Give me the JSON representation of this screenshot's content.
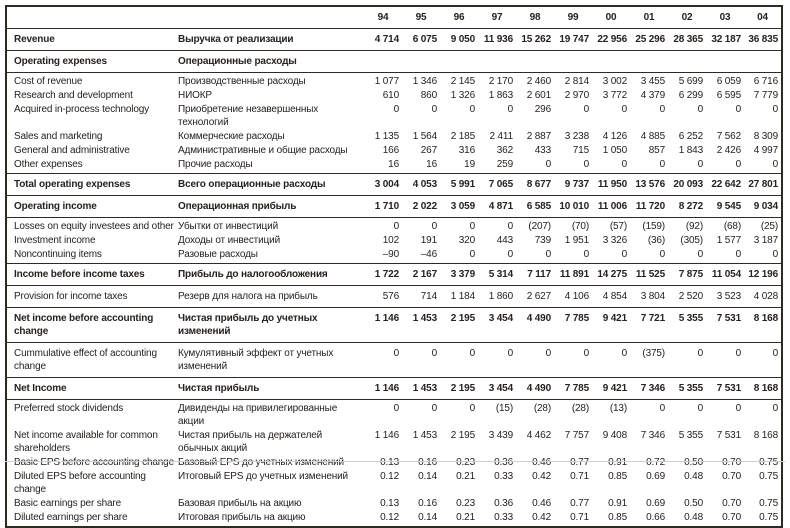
{
  "colors": {
    "text": "#26221e",
    "border": "#2e2a26",
    "bg": "#ffffff"
  },
  "table": {
    "years": [
      "94",
      "95",
      "96",
      "97",
      "98",
      "99",
      "00",
      "01",
      "02",
      "03",
      "04"
    ],
    "groups": [
      {
        "kind": "single",
        "rows": [
          {
            "style": "bold",
            "en": "Revenue",
            "ru": "Выручка от реализации",
            "values": [
              "4 714",
              "6 075",
              "9 050",
              "11 936",
              "15 262",
              "19 747",
              "22 956",
              "25 296",
              "28 365",
              "32 187",
              "36 835"
            ]
          }
        ]
      },
      {
        "kind": "single",
        "rows": [
          {
            "style": "bold",
            "en": "Operating expenses",
            "ru": "Операционные расходы",
            "values": null
          }
        ]
      },
      {
        "kind": "grp",
        "rows": [
          {
            "style": "item",
            "en": "Cost of revenue",
            "ru": "Производственные расходы",
            "values": [
              "1 077",
              "1 346",
              "2 145",
              "2 170",
              "2 460",
              "2 814",
              "3 002",
              "3 455",
              "5 699",
              "6 059",
              "6 716"
            ]
          },
          {
            "style": "item",
            "en": "Research and development",
            "ru": "НИОКР",
            "values": [
              "610",
              "860",
              "1 326",
              "1 863",
              "2 601",
              "2 970",
              "3 772",
              "4 379",
              "6 299",
              "6 595",
              "7 779"
            ]
          },
          {
            "style": "item",
            "en": "Acquired in-process technology",
            "ru": "Приобретение незавершенных технологий",
            "values": [
              "0",
              "0",
              "0",
              "0",
              "296",
              "0",
              "0",
              "0",
              "0",
              "0",
              "0"
            ]
          },
          {
            "style": "item",
            "en": "Sales and marketing",
            "ru": "Коммерческие расходы",
            "values": [
              "1 135",
              "1 564",
              "2 185",
              "2 411",
              "2 887",
              "3 238",
              "4 126",
              "4 885",
              "6 252",
              "7 562",
              "8 309"
            ]
          },
          {
            "style": "item",
            "en": "General and administrative",
            "ru": "Административные и общие расходы",
            "values": [
              "166",
              "267",
              "316",
              "362",
              "433",
              "715",
              "1 050",
              "857",
              "1 843",
              "2 426",
              "4 997"
            ]
          },
          {
            "style": "item",
            "en": "Other expenses",
            "ru": "Прочие расходы",
            "values": [
              "16",
              "16",
              "19",
              "259",
              "0",
              "0",
              "0",
              "0",
              "0",
              "0",
              "0"
            ]
          }
        ]
      },
      {
        "kind": "single",
        "rows": [
          {
            "style": "bold",
            "en": "Total operating expenses",
            "ru": "Всего операционные расходы",
            "values": [
              "3 004",
              "4 053",
              "5 991",
              "7 065",
              "8 677",
              "9 737",
              "11 950",
              "13 576",
              "20 093",
              "22 642",
              "27 801"
            ]
          }
        ]
      },
      {
        "kind": "single",
        "rows": [
          {
            "style": "bold",
            "en": "Operating income",
            "ru": "Операционная прибыль",
            "values": [
              "1 710",
              "2 022",
              "3 059",
              "4 871",
              "6 585",
              "10 010",
              "11 006",
              "11 720",
              "8 272",
              "9 545",
              "9 034"
            ]
          }
        ]
      },
      {
        "kind": "grp",
        "rows": [
          {
            "style": "item",
            "en": "Losses on equity investees and other",
            "ru": "Убытки от инвестиций",
            "values": [
              "0",
              "0",
              "0",
              "0",
              "(207)",
              "(70)",
              "(57)",
              "(159)",
              "(92)",
              "(68)",
              "(25)"
            ]
          },
          {
            "style": "item",
            "en": "Investment income",
            "ru": "Доходы от инвестиций",
            "values": [
              "102",
              "191",
              "320",
              "443",
              "739",
              "1 951",
              "3 326",
              "(36)",
              "(305)",
              "1 577",
              "3 187"
            ]
          },
          {
            "style": "item",
            "en": "Noncontinuing items",
            "ru": "Разовые расходы",
            "values": [
              "–90",
              "–46",
              "0",
              "0",
              "0",
              "0",
              "0",
              "0",
              "0",
              "0",
              "0"
            ]
          }
        ]
      },
      {
        "kind": "single",
        "rows": [
          {
            "style": "bold",
            "en": "Income before income taxes",
            "ru": "Прибыль до налогообложения",
            "values": [
              "1 722",
              "2 167",
              "3 379",
              "5 314",
              "7 117",
              "11 891",
              "14 275",
              "11 525",
              "7 875",
              "11 054",
              "12 196"
            ]
          }
        ]
      },
      {
        "kind": "single-item",
        "rows": [
          {
            "style": "item",
            "en": "Provision for income taxes",
            "ru": "Резерв для налога на прибыль",
            "values": [
              "576",
              "714",
              "1 184",
              "1 860",
              "2 627",
              "4 106",
              "4 854",
              "3 804",
              "2 520",
              "3 523",
              "4 028"
            ]
          }
        ]
      },
      {
        "kind": "single",
        "rows": [
          {
            "style": "bold",
            "en": "Net income before accounting change",
            "ru": "Чистая прибыль до учетных изменений",
            "values": [
              "1 146",
              "1 453",
              "2 195",
              "3 454",
              "4 490",
              "7 785",
              "9 421",
              "7 721",
              "5 355",
              "7 531",
              "8 168"
            ]
          }
        ]
      },
      {
        "kind": "single-item",
        "rows": [
          {
            "style": "item",
            "en": "Cummulative effect of accounting change",
            "ru": "Кумулятивный эффект от учетных изменений",
            "values": [
              "0",
              "0",
              "0",
              "0",
              "0",
              "0",
              "0",
              "(375)",
              "0",
              "0",
              "0"
            ]
          }
        ]
      },
      {
        "kind": "single",
        "rows": [
          {
            "style": "bold",
            "en": "Net Income",
            "ru": "Чистая прибыль",
            "values": [
              "1 146",
              "1 453",
              "2 195",
              "3 454",
              "4 490",
              "7 785",
              "9 421",
              "7 346",
              "5 355",
              "7 531",
              "8 168"
            ]
          }
        ]
      },
      {
        "kind": "grp",
        "rows": [
          {
            "style": "item",
            "en": "Preferred stock dividends",
            "ru": "Дивиденды на привилегированные акции",
            "values": [
              "0",
              "0",
              "0",
              "(15)",
              "(28)",
              "(28)",
              "(13)",
              "0",
              "0",
              "0",
              "0"
            ]
          },
          {
            "style": "item",
            "en": "Net income available for common shareholders",
            "ru": "Чистая прибыль на держателей обычных акций",
            "values": [
              "1 146",
              "1 453",
              "2 195",
              "3 439",
              "4 462",
              "7 757",
              "9 408",
              "7 346",
              "5 355",
              "7 531",
              "8 168"
            ]
          },
          {
            "style": "item",
            "en": "Basic EPS before accounting change",
            "ru": "Базовый EPS до учетных изменений",
            "values": [
              "0.13",
              "0.16",
              "0.23",
              "0.36",
              "0.46",
              "0.77",
              "0.91",
              "0.72",
              "0.50",
              "0.70",
              "0.75"
            ]
          },
          {
            "style": "item",
            "en": "Diluted EPS before accounting change",
            "ru": "Итоговый EPS до учетных изменений",
            "values": [
              "0.12",
              "0.14",
              "0.21",
              "0.33",
              "0.42",
              "0.71",
              "0.85",
              "0.69",
              "0.48",
              "0.70",
              "0.75"
            ]
          },
          {
            "style": "item",
            "en": "Basic earnings per share",
            "ru": "Базовая прибыль на акцию",
            "values": [
              "0.13",
              "0.16",
              "0.23",
              "0.36",
              "0.46",
              "0.77",
              "0.91",
              "0.69",
              "0.50",
              "0.70",
              "0.75"
            ]
          },
          {
            "style": "item",
            "en": "Diluted earnings per share",
            "ru": "Итоговая прибыль на акцию",
            "values": [
              "0.12",
              "0.14",
              "0.21",
              "0.33",
              "0.42",
              "0.71",
              "0.85",
              "0.66",
              "0.48",
              "0.70",
              "0.75"
            ]
          }
        ]
      }
    ]
  }
}
